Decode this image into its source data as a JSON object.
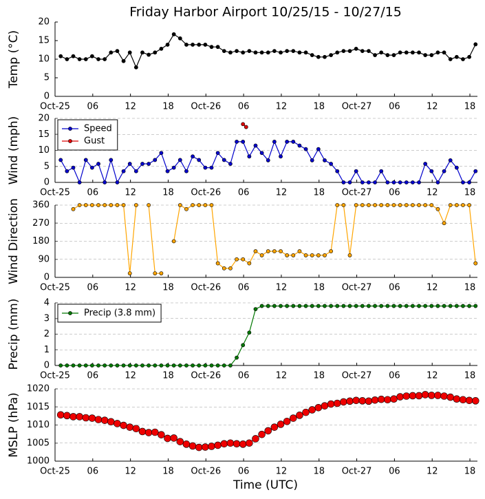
{
  "chart_data": [
    {
      "type": "line",
      "title": "Friday Harbor Airport 10/25/15 - 10/27/15",
      "ylabel": "Temp (°C)",
      "grid": false,
      "xlim": [
        0,
        67.2
      ],
      "xticks": [
        {
          "value": 0,
          "label": "Oct-25"
        },
        {
          "value": 6,
          "label": "06"
        },
        12,
        18,
        {
          "value": 24,
          "label": "Oct-26"
        },
        {
          "value": 30,
          "label": "06"
        },
        {
          "value": 36,
          "label": "12"
        },
        {
          "value": 42,
          "label": "18"
        },
        {
          "value": 48,
          "label": "Oct-27"
        },
        {
          "value": 54,
          "label": "06"
        },
        {
          "value": 60,
          "label": "12"
        },
        {
          "value": 66,
          "label": "18"
        }
      ],
      "ylim": [
        0,
        20
      ],
      "yticks": [
        0,
        5,
        10,
        15,
        20
      ],
      "x": [
        0.9,
        1.9,
        2.9,
        3.9,
        4.9,
        5.9,
        6.9,
        7.9,
        8.9,
        9.9,
        10.9,
        11.9,
        12.9,
        13.9,
        14.9,
        15.9,
        16.9,
        17.9,
        18.9,
        19.9,
        20.9,
        21.9,
        22.9,
        23.9,
        24.9,
        25.9,
        26.9,
        27.9,
        28.9,
        29.9,
        30.9,
        31.9,
        32.9,
        33.9,
        34.9,
        35.9,
        36.9,
        37.9,
        38.9,
        39.9,
        40.9,
        41.9,
        42.9,
        43.9,
        44.9,
        45.9,
        46.9,
        47.9,
        48.9,
        49.9,
        50.9,
        51.9,
        52.9,
        53.9,
        54.9,
        55.9,
        56.9,
        57.9,
        58.9,
        59.9,
        60.9,
        61.9,
        62.9,
        63.9,
        64.9,
        65.9,
        66.9
      ],
      "series": [
        {
          "color": "#000000",
          "values": [
            10.8,
            10,
            10.8,
            10,
            10,
            10.8,
            10,
            10,
            11.8,
            12.2,
            9.5,
            11.8,
            7.8,
            11.8,
            11.2,
            11.8,
            12.8,
            13.9,
            16.7,
            15.6,
            13.9,
            13.9,
            13.9,
            13.9,
            13.3,
            13.3,
            12.2,
            11.8,
            12.2,
            11.8,
            12.2,
            11.8,
            11.8,
            11.8,
            12.2,
            11.8,
            12.2,
            12.2,
            11.8,
            11.8,
            11.1,
            10.6,
            10.6,
            11.1,
            11.8,
            12.2,
            12.2,
            12.8,
            12.2,
            12.2,
            11.1,
            11.8,
            11.1,
            11.1,
            11.8,
            11.8,
            11.8,
            11.8,
            11.1,
            11.1,
            11.8,
            11.8,
            10,
            10.6,
            10,
            10.6,
            14
          ]
        }
      ]
    },
    {
      "type": "line",
      "ylabel": "Wind (mph)",
      "grid": true,
      "legend": "upper left",
      "xlim": [
        0,
        67.2
      ],
      "xticks": [
        {
          "value": 0,
          "label": "Oct-25"
        },
        {
          "value": 6,
          "label": "06"
        },
        12,
        18,
        {
          "value": 24,
          "label": "Oct-26"
        },
        {
          "value": 30,
          "label": "06"
        },
        {
          "value": 36,
          "label": "12"
        },
        {
          "value": 42,
          "label": "18"
        },
        {
          "value": 48,
          "label": "Oct-27"
        },
        {
          "value": 54,
          "label": "06"
        },
        {
          "value": 60,
          "label": "12"
        },
        {
          "value": 66,
          "label": "18"
        }
      ],
      "ylim": [
        0,
        20
      ],
      "yticks": [
        0,
        5,
        10,
        15,
        20
      ],
      "x": [
        0.9,
        1.9,
        2.9,
        3.9,
        4.9,
        5.9,
        6.9,
        7.9,
        8.9,
        9.9,
        10.9,
        11.9,
        12.9,
        13.9,
        14.9,
        15.9,
        16.9,
        17.9,
        18.9,
        19.9,
        20.9,
        21.9,
        22.9,
        23.9,
        24.9,
        25.9,
        26.9,
        27.9,
        28.9,
        29.9,
        30.9,
        31.9,
        32.9,
        33.9,
        34.9,
        35.9,
        36.9,
        37.9,
        38.9,
        39.9,
        40.9,
        41.9,
        42.9,
        43.9,
        44.9,
        45.9,
        46.9,
        47.9,
        48.9,
        49.9,
        50.9,
        51.9,
        52.9,
        53.9,
        54.9,
        55.9,
        56.9,
        57.9,
        58.9,
        59.9,
        60.9,
        61.9,
        62.9,
        63.9,
        64.9,
        65.9,
        66.9
      ],
      "series": [
        {
          "name": "Speed",
          "color": "#0000cc",
          "values": [
            7,
            3.5,
            4.6,
            0,
            7,
            4.6,
            5.8,
            0,
            7,
            0,
            3.5,
            5.8,
            3.5,
            5.8,
            5.8,
            7,
            9.2,
            3.5,
            4.6,
            7,
            3.5,
            8.1,
            7,
            4.6,
            4.6,
            9.2,
            7,
            5.8,
            12.7,
            12.7,
            8.1,
            11.5,
            9.2,
            6.9,
            12.7,
            8.1,
            12.7,
            12.7,
            11.5,
            10.4,
            6.9,
            10.4,
            6.9,
            5.8,
            3.5,
            0,
            0,
            3.5,
            0,
            0,
            0,
            3.5,
            0,
            0,
            0,
            0,
            0,
            0,
            5.8,
            3.5,
            0,
            3.5,
            6.9,
            4.6,
            0,
            0,
            3.5
          ]
        },
        {
          "name": "Gust",
          "color": "#dd0000",
          "x": [
            29.9,
            30.4
          ],
          "values": [
            18.2,
            17.3
          ]
        }
      ]
    },
    {
      "type": "line",
      "ylabel": "Wind Direction",
      "grid": true,
      "xlim": [
        0,
        67.2
      ],
      "xticks": [
        {
          "value": 0,
          "label": "Oct-25"
        },
        {
          "value": 6,
          "label": "06"
        },
        12,
        18,
        {
          "value": 24,
          "label": "Oct-26"
        },
        {
          "value": 30,
          "label": "06"
        },
        {
          "value": 36,
          "label": "12"
        },
        {
          "value": 42,
          "label": "18"
        },
        {
          "value": 48,
          "label": "Oct-27"
        },
        {
          "value": 54,
          "label": "06"
        },
        {
          "value": 60,
          "label": "12"
        },
        {
          "value": 66,
          "label": "18"
        }
      ],
      "ylim": [
        0,
        360
      ],
      "yticks": [
        0,
        90,
        180,
        270,
        360
      ],
      "x": [
        0.9,
        1.9,
        2.9,
        3.9,
        4.9,
        5.9,
        6.9,
        7.9,
        8.9,
        9.9,
        10.9,
        11.9,
        12.9,
        13.9,
        14.9,
        15.9,
        16.9,
        17.9,
        18.9,
        19.9,
        20.9,
        21.9,
        22.9,
        23.9,
        24.9,
        25.9,
        26.9,
        27.9,
        28.9,
        29.9,
        30.9,
        31.9,
        32.9,
        33.9,
        34.9,
        35.9,
        36.9,
        37.9,
        38.9,
        39.9,
        40.9,
        41.9,
        42.9,
        43.9,
        44.9,
        45.9,
        46.9,
        47.9,
        48.9,
        49.9,
        50.9,
        51.9,
        52.9,
        53.9,
        54.9,
        55.9,
        56.9,
        57.9,
        58.9,
        59.9,
        60.9,
        61.9,
        62.9,
        63.9,
        64.9,
        65.9,
        66.9
      ],
      "series": [
        {
          "color": "#ffa500",
          "values": [
            null,
            null,
            340,
            360,
            360,
            360,
            360,
            360,
            360,
            360,
            360,
            20,
            360,
            null,
            360,
            20,
            20,
            null,
            180,
            360,
            340,
            360,
            360,
            360,
            360,
            70,
            45,
            45,
            90,
            90,
            70,
            130,
            110,
            130,
            130,
            130,
            110,
            110,
            130,
            110,
            110,
            110,
            110,
            130,
            360,
            360,
            110,
            360,
            360,
            360,
            360,
            360,
            360,
            360,
            360,
            360,
            360,
            360,
            360,
            360,
            340,
            270,
            360,
            360,
            360,
            360,
            70
          ]
        }
      ]
    },
    {
      "type": "line",
      "ylabel": "Precip (mm)",
      "grid": true,
      "legend": "upper left",
      "xlim": [
        0,
        67.2
      ],
      "xticks": [
        {
          "value": 0,
          "label": "Oct-25"
        },
        {
          "value": 6,
          "label": "06"
        },
        12,
        18,
        {
          "value": 24,
          "label": "Oct-26"
        },
        {
          "value": 30,
          "label": "06"
        },
        {
          "value": 36,
          "label": "12"
        },
        {
          "value": 42,
          "label": "18"
        },
        {
          "value": 48,
          "label": "Oct-27"
        },
        {
          "value": 54,
          "label": "06"
        },
        {
          "value": 60,
          "label": "12"
        },
        {
          "value": 66,
          "label": "18"
        }
      ],
      "ylim": [
        0,
        4
      ],
      "yticks": [
        0,
        1,
        2,
        3,
        4
      ],
      "x": [
        0.9,
        1.9,
        2.9,
        3.9,
        4.9,
        5.9,
        6.9,
        7.9,
        8.9,
        9.9,
        10.9,
        11.9,
        12.9,
        13.9,
        14.9,
        15.9,
        16.9,
        17.9,
        18.9,
        19.9,
        20.9,
        21.9,
        22.9,
        23.9,
        24.9,
        25.9,
        26.9,
        27.9,
        28.9,
        29.9,
        30.9,
        31.9,
        32.9,
        33.9,
        34.9,
        35.9,
        36.9,
        37.9,
        38.9,
        39.9,
        40.9,
        41.9,
        42.9,
        43.9,
        44.9,
        45.9,
        46.9,
        47.9,
        48.9,
        49.9,
        50.9,
        51.9,
        52.9,
        53.9,
        54.9,
        55.9,
        56.9,
        57.9,
        58.9,
        59.9,
        60.9,
        61.9,
        62.9,
        63.9,
        64.9,
        65.9,
        66.9
      ],
      "series": [
        {
          "name": "Precip (3.8 mm)",
          "color": "#007700",
          "values": [
            0,
            0,
            0,
            0,
            0,
            0,
            0,
            0,
            0,
            0,
            0,
            0,
            0,
            0,
            0,
            0,
            0,
            0,
            0,
            0,
            0,
            0,
            0,
            0,
            0,
            0,
            0,
            0,
            0.5,
            1.3,
            2.1,
            3.6,
            3.8,
            3.8,
            3.8,
            3.8,
            3.8,
            3.8,
            3.8,
            3.8,
            3.8,
            3.8,
            3.8,
            3.8,
            3.8,
            3.8,
            3.8,
            3.8,
            3.8,
            3.8,
            3.8,
            3.8,
            3.8,
            3.8,
            3.8,
            3.8,
            3.8,
            3.8,
            3.8,
            3.8,
            3.8,
            3.8,
            3.8,
            3.8,
            3.8,
            3.8,
            3.8
          ]
        }
      ]
    },
    {
      "type": "line",
      "ylabel": "MSLP (hPa)",
      "xlabel": "Time (UTC)",
      "grid": true,
      "marker": "large",
      "xlim": [
        0,
        67.2
      ],
      "xticks": [
        {
          "value": 0,
          "label": "Oct-25"
        },
        {
          "value": 6,
          "label": "06"
        },
        12,
        18,
        {
          "value": 24,
          "label": "Oct-26"
        },
        {
          "value": 30,
          "label": "06"
        },
        {
          "value": 36,
          "label": "12"
        },
        {
          "value": 42,
          "label": "18"
        },
        {
          "value": 48,
          "label": "Oct-27"
        },
        {
          "value": 54,
          "label": "06"
        },
        {
          "value": 60,
          "label": "12"
        },
        {
          "value": 66,
          "label": "18"
        }
      ],
      "ylim": [
        1000,
        1020
      ],
      "yticks": [
        1000,
        1005,
        1010,
        1015,
        1020
      ],
      "x": [
        0.9,
        1.9,
        2.9,
        3.9,
        4.9,
        5.9,
        6.9,
        7.9,
        8.9,
        9.9,
        10.9,
        11.9,
        12.9,
        13.9,
        14.9,
        15.9,
        16.9,
        17.9,
        18.9,
        19.9,
        20.9,
        21.9,
        22.9,
        23.9,
        24.9,
        25.9,
        26.9,
        27.9,
        28.9,
        29.9,
        30.9,
        31.9,
        32.9,
        33.9,
        34.9,
        35.9,
        36.9,
        37.9,
        38.9,
        39.9,
        40.9,
        41.9,
        42.9,
        43.9,
        44.9,
        45.9,
        46.9,
        47.9,
        48.9,
        49.9,
        50.9,
        51.9,
        52.9,
        53.9,
        54.9,
        55.9,
        56.9,
        57.9,
        58.9,
        59.9,
        60.9,
        61.9,
        62.9,
        63.9,
        64.9,
        65.9,
        66.9
      ],
      "series": [
        {
          "color": "#ee0000",
          "values": [
            1012.8,
            1012.6,
            1012.3,
            1012.3,
            1012,
            1011.9,
            1011.5,
            1011.3,
            1010.9,
            1010.4,
            1009.9,
            1009.4,
            1009,
            1008.2,
            1007.9,
            1008,
            1007.3,
            1006.3,
            1006.4,
            1005.4,
            1004.7,
            1004.2,
            1003.8,
            1003.9,
            1004.1,
            1004.4,
            1004.8,
            1005,
            1004.8,
            1004.7,
            1005,
            1006.2,
            1007.4,
            1008.4,
            1009.4,
            1010.2,
            1011,
            1011.9,
            1012.7,
            1013.5,
            1014.2,
            1014.8,
            1015.3,
            1015.8,
            1016,
            1016.4,
            1016.6,
            1016.8,
            1016.7,
            1016.6,
            1016.9,
            1017.1,
            1017,
            1017.2,
            1017.8,
            1018,
            1018.1,
            1018.1,
            1018.4,
            1018.2,
            1018.2,
            1018,
            1017.7,
            1017.2,
            1017,
            1016.8,
            1016.7
          ]
        }
      ]
    }
  ]
}
